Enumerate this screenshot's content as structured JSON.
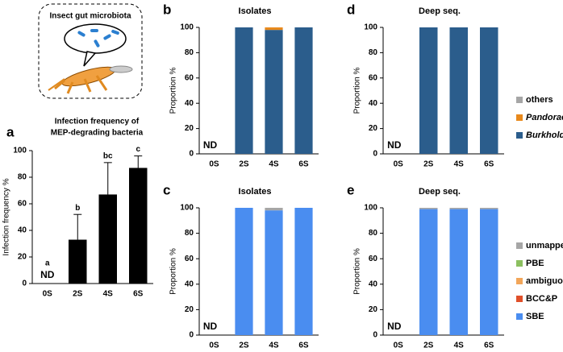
{
  "illustration": {
    "title": "Insect gut microbiota"
  },
  "chart_data": [
    {
      "type": "bar",
      "panel_label": "a",
      "title": [
        "Infection frequency of",
        "MEP-degrading bacteria"
      ],
      "ylabel": "Infection frequency %",
      "categories": [
        "0S",
        "2S",
        "4S",
        "6S"
      ],
      "values": [
        null,
        33,
        67,
        87
      ],
      "errors": [
        null,
        19,
        24,
        9
      ],
      "color": "#000000",
      "ylim": [
        0,
        100
      ],
      "yticks": [
        0,
        20,
        40,
        60,
        80,
        100
      ],
      "annotations": [
        {
          "x": "0S",
          "text": "a"
        },
        {
          "x": "0S",
          "text": "ND"
        },
        {
          "x": "2S",
          "text": "b"
        },
        {
          "x": "4S",
          "text": "bc"
        },
        {
          "x": "6S",
          "text": "c"
        }
      ]
    },
    {
      "type": "stacked_bar",
      "panel_label": "b",
      "title": "Isolates",
      "ylabel": "Proportion %",
      "categories": [
        "0S",
        "2S",
        "4S",
        "6S"
      ],
      "series": [
        {
          "color": "#2b5d8c",
          "values": [
            null,
            100,
            98,
            100
          ]
        },
        {
          "color": "#e8891c",
          "values": [
            null,
            0,
            2,
            0
          ]
        },
        {
          "color": "#a6a6a6",
          "values": [
            null,
            0,
            0,
            0
          ]
        }
      ],
      "ylim": [
        0,
        100
      ],
      "yticks": [
        0,
        20,
        40,
        60,
        80,
        100
      ],
      "annotations": [
        {
          "x": "0S",
          "text": "ND"
        }
      ]
    },
    {
      "type": "stacked_bar",
      "panel_label": "c",
      "title": "Isolates",
      "ylabel": "Proportion %",
      "categories": [
        "0S",
        "2S",
        "4S",
        "6S"
      ],
      "series": [
        {
          "color": "#4a8df0",
          "values": [
            null,
            100,
            98,
            100
          ]
        },
        {
          "color": "#e0502a",
          "values": [
            null,
            0,
            0,
            0
          ]
        },
        {
          "color": "#f2a65a",
          "values": [
            null,
            0,
            0,
            0
          ]
        },
        {
          "color": "#8cc060",
          "values": [
            null,
            0,
            0,
            0
          ]
        },
        {
          "color": "#a6a6a6",
          "values": [
            null,
            0,
            2,
            0
          ]
        }
      ],
      "ylim": [
        0,
        100
      ],
      "yticks": [
        0,
        20,
        40,
        60,
        80,
        100
      ],
      "annotations": [
        {
          "x": "0S",
          "text": "ND"
        }
      ]
    },
    {
      "type": "stacked_bar",
      "panel_label": "d",
      "title": "Deep seq.",
      "ylabel": "Proportion %",
      "categories": [
        "0S",
        "2S",
        "4S",
        "6S"
      ],
      "series": [
        {
          "name": "Burkholderia",
          "font_style": "italic",
          "color": "#2b5d8c",
          "values": [
            null,
            100,
            100,
            100
          ]
        },
        {
          "name": "Pandoraea",
          "font_style": "italic",
          "color": "#e8891c",
          "values": [
            null,
            0,
            0,
            0
          ]
        },
        {
          "name": "others",
          "color": "#a6a6a6",
          "values": [
            null,
            0,
            0,
            0
          ]
        }
      ],
      "ylim": [
        0,
        100
      ],
      "yticks": [
        0,
        20,
        40,
        60,
        80,
        100
      ],
      "legend": "right",
      "annotations": [
        {
          "x": "0S",
          "text": "ND"
        }
      ]
    },
    {
      "type": "stacked_bar",
      "panel_label": "e",
      "title": "Deep seq.",
      "ylabel": "Proportion %",
      "categories": [
        "0S",
        "2S",
        "4S",
        "6S"
      ],
      "series": [
        {
          "name": "SBE",
          "color": "#4a8df0",
          "values": [
            null,
            99,
            99,
            99
          ]
        },
        {
          "name": "BCC&P",
          "color": "#e0502a",
          "values": [
            null,
            0,
            0,
            0
          ]
        },
        {
          "name": "ambiguous B",
          "color": "#f2a65a",
          "values": [
            null,
            0,
            0,
            0
          ]
        },
        {
          "name": "PBE",
          "color": "#8cc060",
          "values": [
            null,
            0,
            0,
            0
          ]
        },
        {
          "name": "unmapped",
          "color": "#a6a6a6",
          "values": [
            null,
            1,
            1,
            1
          ]
        }
      ],
      "ylim": [
        0,
        100
      ],
      "yticks": [
        0,
        20,
        40,
        60,
        80,
        100
      ],
      "legend": "right",
      "annotations": [
        {
          "x": "0S",
          "text": "ND"
        }
      ]
    }
  ]
}
